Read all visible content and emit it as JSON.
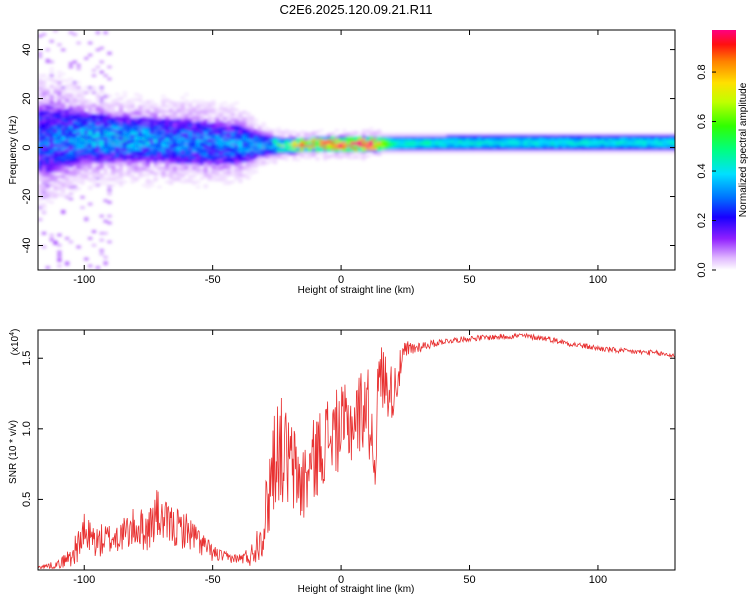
{
  "figure": {
    "title": "C2E6.2025.120.09.21.R11"
  },
  "chart_data": [
    {
      "type": "heatmap",
      "title": "C2E6.2025.120.09.21.R11",
      "xlabel": "Height of straight line (km)",
      "ylabel": "Frequency (Hz)",
      "xlim": [
        -118,
        130
      ],
      "ylim": [
        -50,
        48
      ],
      "xticks": [
        -100,
        -50,
        0,
        50,
        100
      ],
      "yticks": [
        -40,
        -20,
        0,
        20,
        40
      ],
      "xtick_labels": [
        "-100",
        "-50",
        "0",
        "50",
        "100"
      ],
      "ytick_labels": [
        "-40",
        "-20",
        "0",
        "20",
        "40"
      ],
      "grid": false,
      "colorbar": {
        "label": "Normalized spectral amplitude",
        "range": [
          0.0,
          0.97
        ],
        "ticks": [
          0.0,
          0.2,
          0.4,
          0.6,
          0.8
        ],
        "tick_labels": [
          "0.0",
          "0.2",
          "0.4",
          "0.6",
          "0.8"
        ],
        "colormap": [
          "#ffffff",
          "#e8c8ff",
          "#a040ff",
          "#5000ff",
          "#0000ff",
          "#00a0ff",
          "#00ffe0",
          "#00ff40",
          "#a0ff00",
          "#ffe000",
          "#ff8000",
          "#ff0040",
          "#ff0080"
        ]
      },
      "ridge": {
        "description_points_x": [
          -115,
          -100,
          -80,
          -60,
          -40,
          -30,
          -20,
          -10,
          0,
          10,
          20,
          40,
          60,
          80,
          100,
          130
        ],
        "center_y": [
          3,
          4,
          3,
          2,
          1,
          0.5,
          0.5,
          1,
          1,
          1.2,
          1.4,
          1.6,
          1.7,
          1.7,
          1.7,
          1.7
        ],
        "halfwidth_y": [
          14,
          10,
          9,
          9,
          8,
          4,
          3,
          3,
          3,
          3,
          3,
          3,
          3,
          3,
          3,
          3
        ],
        "amplitude": [
          0.25,
          0.3,
          0.3,
          0.28,
          0.28,
          0.3,
          0.6,
          0.8,
          0.85,
          0.9,
          0.45,
          0.4,
          0.4,
          0.4,
          0.4,
          0.4
        ]
      }
    },
    {
      "type": "line",
      "xlabel": "Height of straight line (km)",
      "ylabel": "SNR (10 * v/v)",
      "scale_label": "(x10",
      "scale_exponent": "4",
      "xlim": [
        -118,
        130
      ],
      "ylim": [
        0,
        1.7
      ],
      "xticks": [
        -100,
        -50,
        0,
        50,
        100
      ],
      "yticks": [
        0.5,
        1.0,
        1.5
      ],
      "xtick_labels": [
        "-100",
        "-50",
        "0",
        "50",
        "100"
      ],
      "ytick_labels": [
        "0.5",
        "1.0",
        "1.5"
      ],
      "grid": false,
      "color": "#e83030",
      "series": [
        {
          "x": [
            -118,
            -110,
            -105,
            -100,
            -95,
            -90,
            -85,
            -80,
            -75,
            -72,
            -70,
            -65,
            -60,
            -55,
            -50,
            -45,
            -40,
            -35,
            -30,
            -27,
            -25,
            -20,
            -15,
            -10,
            -5,
            0,
            5,
            10,
            13,
            15,
            20,
            25,
            30,
            40,
            50,
            60,
            70,
            80,
            90,
            100,
            110,
            120,
            130
          ],
          "y": [
            0.02,
            0.04,
            0.1,
            0.25,
            0.2,
            0.22,
            0.25,
            0.3,
            0.28,
            0.4,
            0.35,
            0.3,
            0.28,
            0.2,
            0.12,
            0.09,
            0.08,
            0.1,
            0.3,
            0.7,
            0.9,
            0.75,
            0.6,
            0.8,
            0.95,
            1.0,
            1.05,
            1.2,
            0.8,
            1.4,
            1.25,
            1.55,
            1.58,
            1.62,
            1.64,
            1.65,
            1.66,
            1.64,
            1.6,
            1.57,
            1.55,
            1.54,
            1.52
          ],
          "noise": [
            0.01,
            0.03,
            0.08,
            0.15,
            0.12,
            0.12,
            0.12,
            0.15,
            0.15,
            0.2,
            0.15,
            0.15,
            0.13,
            0.1,
            0.06,
            0.04,
            0.03,
            0.08,
            0.2,
            0.4,
            0.4,
            0.35,
            0.3,
            0.3,
            0.3,
            0.3,
            0.3,
            0.3,
            0.3,
            0.25,
            0.2,
            0.08,
            0.04,
            0.02,
            0.02,
            0.02,
            0.02,
            0.02,
            0.02,
            0.02,
            0.02,
            0.02,
            0.02
          ]
        }
      ]
    }
  ]
}
